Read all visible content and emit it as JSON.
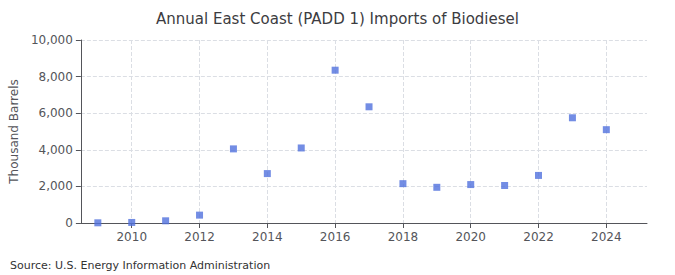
{
  "chart_data": {
    "type": "scatter",
    "title": "Annual East Coast (PADD 1) Imports of Biodiesel",
    "ylabel": "Thousand Barrels",
    "annotation": "Source: U.S. Energy Information Administration",
    "x": [
      2009,
      2010,
      2011,
      2012,
      2013,
      2014,
      2015,
      2016,
      2017,
      2018,
      2019,
      2020,
      2021,
      2022,
      2023,
      2024
    ],
    "values": [
      10,
      30,
      120,
      430,
      4050,
      2700,
      4100,
      8350,
      6350,
      2150,
      1950,
      2100,
      2050,
      2600,
      5750,
      5100
    ],
    "xlim": [
      2008.5,
      2025.2
    ],
    "xticks": [
      2010,
      2012,
      2014,
      2016,
      2018,
      2020,
      2022,
      2024
    ],
    "ylim": [
      0,
      10000
    ],
    "yticks": [
      0,
      {
        "value": 2000,
        "label": "2,000"
      },
      {
        "value": 4000,
        "label": "4,000"
      },
      {
        "value": 6000,
        "label": "6,000"
      },
      {
        "value": 8000,
        "label": "8,000"
      },
      {
        "value": 10000,
        "label": "10,000"
      }
    ],
    "grid": true,
    "marker": "square"
  }
}
